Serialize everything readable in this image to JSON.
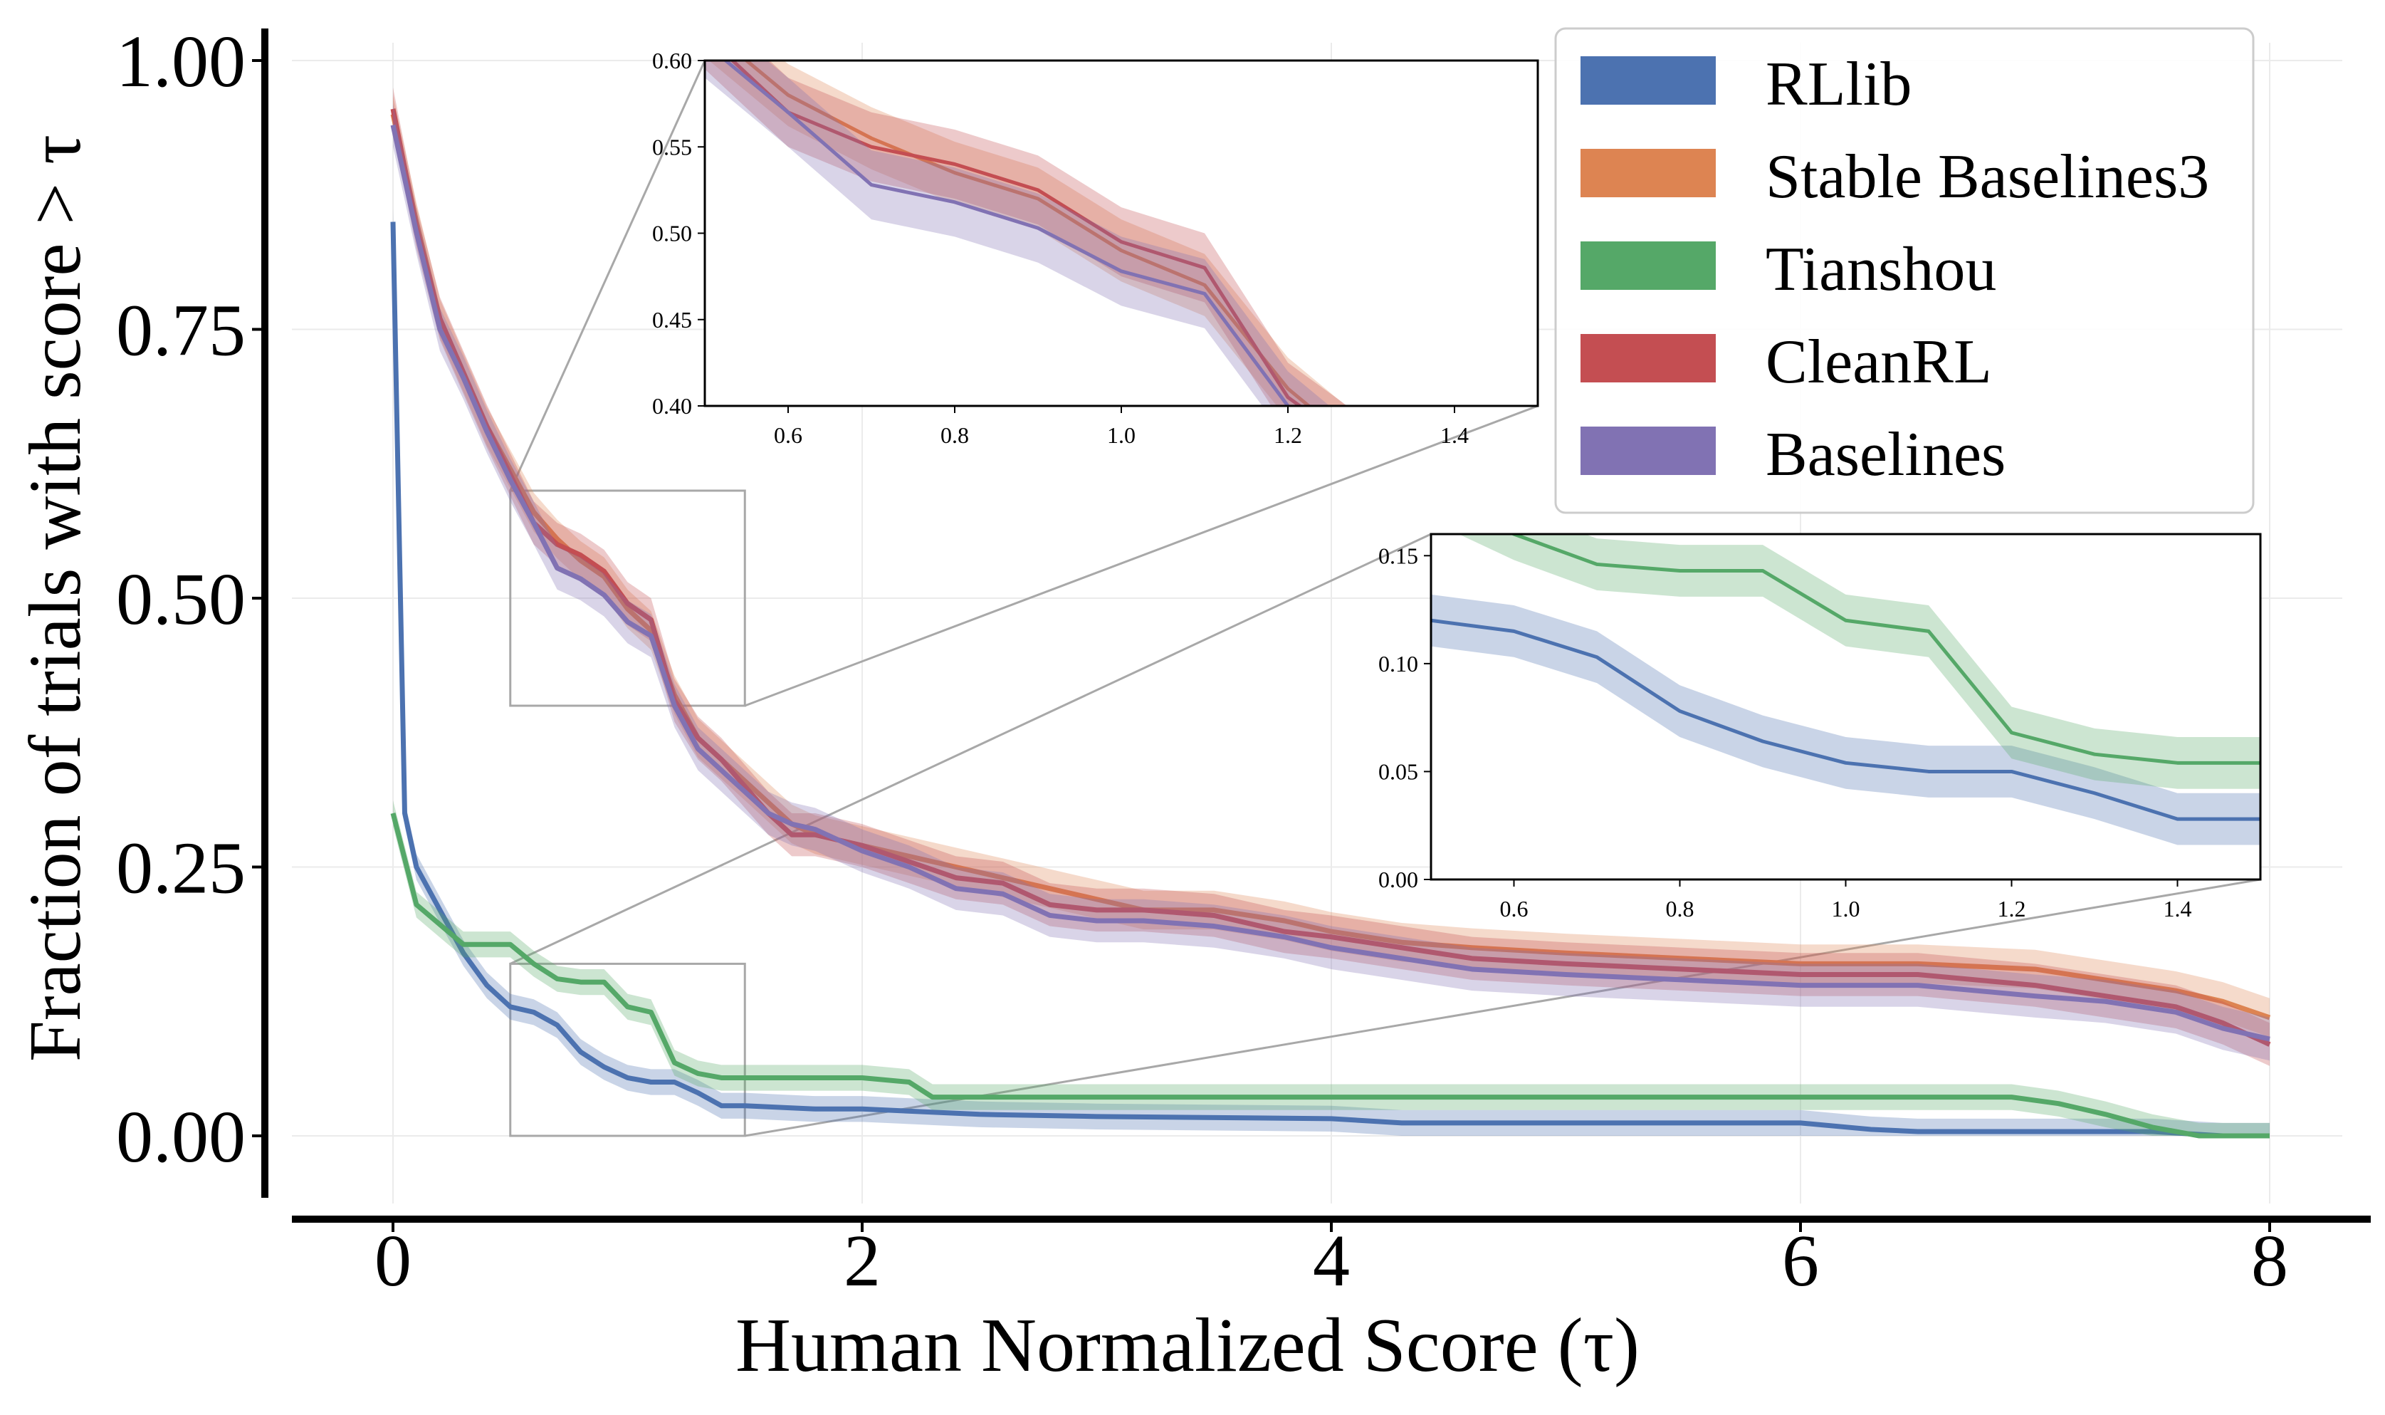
{
  "chart_data": {
    "type": "line",
    "xlabel": "Human Normalized Score (τ)",
    "ylabel": "Fraction of trials with score > τ",
    "xlim": [
      -0.5,
      8.4
    ],
    "ylim": [
      -0.055,
      1.04
    ],
    "xticks": [
      0,
      2,
      4,
      6,
      8
    ],
    "yticks": [
      0.0,
      0.25,
      0.5,
      0.75,
      1.0
    ],
    "xtick_labels": [
      "0",
      "2",
      "4",
      "6",
      "8"
    ],
    "ytick_labels": [
      "0.00",
      "0.25",
      "0.50",
      "0.75",
      "1.00"
    ],
    "grid": true,
    "legend_position": "top-right",
    "series": [
      {
        "name": "RLlib",
        "color": "#4c72b0",
        "x": [
          0,
          0.05,
          0.1,
          0.2,
          0.3,
          0.4,
          0.5,
          0.6,
          0.7,
          0.8,
          0.9,
          1.0,
          1.1,
          1.2,
          1.3,
          1.4,
          1.5,
          1.8,
          2.0,
          2.5,
          3.0,
          4.0,
          4.3,
          5.0,
          6.0,
          6.3,
          6.5,
          7.0,
          7.5,
          7.8,
          8.0
        ],
        "y": [
          0.85,
          0.3,
          0.25,
          0.21,
          0.17,
          0.14,
          0.12,
          0.115,
          0.103,
          0.078,
          0.064,
          0.054,
          0.05,
          0.05,
          0.04,
          0.028,
          0.028,
          0.025,
          0.025,
          0.02,
          0.018,
          0.016,
          0.012,
          0.012,
          0.012,
          0.006,
          0.004,
          0.004,
          0.004,
          0.0,
          0.0
        ],
        "band": 0.012
      },
      {
        "name": "Stable Baselines3",
        "color": "#dd8452",
        "x": [
          0,
          0.1,
          0.2,
          0.3,
          0.4,
          0.5,
          0.6,
          0.7,
          0.8,
          0.9,
          1.0,
          1.1,
          1.2,
          1.3,
          1.4,
          1.5,
          1.6,
          1.7,
          1.8,
          2.0,
          2.2,
          2.4,
          2.6,
          2.8,
          3.0,
          3.2,
          3.5,
          3.8,
          4.0,
          4.3,
          4.6,
          5.0,
          5.5,
          6.0,
          6.5,
          7.0,
          7.3,
          7.6,
          7.8,
          8.0
        ],
        "y": [
          0.95,
          0.85,
          0.76,
          0.71,
          0.66,
          0.62,
          0.58,
          0.555,
          0.535,
          0.52,
          0.49,
          0.47,
          0.41,
          0.37,
          0.35,
          0.33,
          0.31,
          0.29,
          0.28,
          0.27,
          0.26,
          0.25,
          0.24,
          0.23,
          0.22,
          0.21,
          0.21,
          0.2,
          0.19,
          0.18,
          0.175,
          0.17,
          0.165,
          0.16,
          0.16,
          0.155,
          0.145,
          0.135,
          0.125,
          0.11
        ],
        "band": 0.018
      },
      {
        "name": "Tianshou",
        "color": "#55a868",
        "x": [
          0,
          0.1,
          0.3,
          0.5,
          0.6,
          0.7,
          0.8,
          0.9,
          1.0,
          1.1,
          1.2,
          1.3,
          1.4,
          1.5,
          2.0,
          2.2,
          2.3,
          3.0,
          4.0,
          5.0,
          6.0,
          6.9,
          7.1,
          7.3,
          7.5,
          7.6,
          7.7,
          8.0
        ],
        "y": [
          0.3,
          0.215,
          0.178,
          0.178,
          0.16,
          0.146,
          0.143,
          0.143,
          0.12,
          0.115,
          0.068,
          0.058,
          0.054,
          0.054,
          0.054,
          0.05,
          0.036,
          0.036,
          0.036,
          0.036,
          0.036,
          0.036,
          0.03,
          0.02,
          0.008,
          0.004,
          0.0,
          0.0
        ],
        "band": 0.012
      },
      {
        "name": "CleanRL",
        "color": "#c44e52",
        "x": [
          0,
          0.1,
          0.2,
          0.3,
          0.4,
          0.5,
          0.6,
          0.7,
          0.8,
          0.9,
          1.0,
          1.1,
          1.2,
          1.3,
          1.4,
          1.5,
          1.6,
          1.7,
          1.8,
          2.0,
          2.2,
          2.4,
          2.6,
          2.8,
          3.0,
          3.2,
          3.5,
          3.8,
          4.0,
          4.3,
          4.6,
          5.0,
          5.5,
          6.0,
          6.5,
          7.0,
          7.3,
          7.6,
          7.8,
          8.0
        ],
        "y": [
          0.955,
          0.845,
          0.76,
          0.71,
          0.66,
          0.615,
          0.57,
          0.55,
          0.54,
          0.525,
          0.495,
          0.48,
          0.405,
          0.37,
          0.35,
          0.325,
          0.3,
          0.28,
          0.28,
          0.27,
          0.255,
          0.24,
          0.235,
          0.215,
          0.21,
          0.21,
          0.205,
          0.19,
          0.185,
          0.175,
          0.165,
          0.16,
          0.155,
          0.15,
          0.15,
          0.14,
          0.13,
          0.12,
          0.105,
          0.085
        ],
        "band": 0.02
      },
      {
        "name": "Baselines",
        "color": "#8172b3",
        "x": [
          0,
          0.1,
          0.2,
          0.3,
          0.4,
          0.5,
          0.6,
          0.7,
          0.8,
          0.9,
          1.0,
          1.1,
          1.2,
          1.3,
          1.4,
          1.5,
          1.6,
          1.7,
          1.8,
          2.0,
          2.2,
          2.4,
          2.6,
          2.8,
          3.0,
          3.2,
          3.5,
          3.8,
          4.0,
          4.3,
          4.6,
          5.0,
          5.5,
          6.0,
          6.5,
          7.0,
          7.3,
          7.6,
          7.8,
          8.0
        ],
        "y": [
          0.94,
          0.84,
          0.75,
          0.705,
          0.655,
          0.61,
          0.57,
          0.528,
          0.518,
          0.503,
          0.478,
          0.465,
          0.4,
          0.36,
          0.34,
          0.32,
          0.3,
          0.29,
          0.285,
          0.265,
          0.25,
          0.23,
          0.225,
          0.205,
          0.2,
          0.2,
          0.195,
          0.185,
          0.175,
          0.165,
          0.155,
          0.15,
          0.145,
          0.14,
          0.14,
          0.13,
          0.125,
          0.115,
          0.1,
          0.09
        ],
        "band": 0.02
      }
    ],
    "insets": [
      {
        "xlim": [
          0.5,
          1.5
        ],
        "ylim": [
          0.4,
          0.6
        ],
        "xticks": [
          0.6,
          0.8,
          1.0,
          1.2,
          1.4
        ],
        "yticks": [
          0.4,
          0.45,
          0.5,
          0.55,
          0.6
        ],
        "xtick_labels": [
          "0.6",
          "0.8",
          "1.0",
          "1.2",
          "1.4"
        ],
        "ytick_labels": [
          "0.40",
          "0.45",
          "0.50",
          "0.55",
          "0.60"
        ],
        "series": [
          "Stable Baselines3",
          "CleanRL",
          "Baselines"
        ]
      },
      {
        "xlim": [
          0.5,
          1.5
        ],
        "ylim": [
          0.0,
          0.16
        ],
        "xticks": [
          0.6,
          0.8,
          1.0,
          1.2,
          1.4
        ],
        "yticks": [
          0.0,
          0.05,
          0.1,
          0.15
        ],
        "xtick_labels": [
          "0.6",
          "0.8",
          "1.0",
          "1.2",
          "1.4"
        ],
        "ytick_labels": [
          "0.00",
          "0.05",
          "0.10",
          "0.15"
        ],
        "series": [
          "RLlib",
          "Tianshou"
        ]
      }
    ]
  }
}
